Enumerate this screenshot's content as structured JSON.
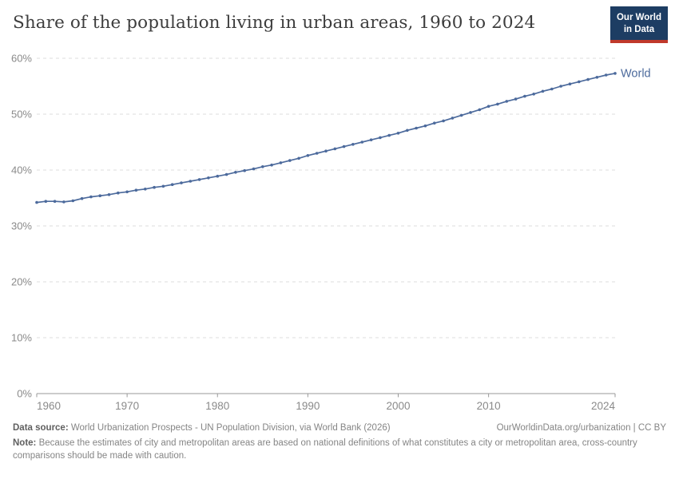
{
  "header": {
    "title": "Share of the population living in urban areas, 1960 to 2024",
    "logo": {
      "line1": "Our World",
      "line2": "in Data"
    }
  },
  "chart_data": {
    "type": "line",
    "title": "Share of the population living in urban areas, 1960 to 2024",
    "xlabel": "",
    "ylabel": "",
    "xlim": [
      1960,
      2024
    ],
    "ylim": [
      0,
      60
    ],
    "grid": "horizontal-dashed",
    "legend": "end-of-line-label",
    "x_ticks": [
      1960,
      1970,
      1980,
      1990,
      2000,
      2010,
      2024
    ],
    "y_ticks": [
      0,
      10,
      20,
      30,
      40,
      50,
      60
    ],
    "y_tick_suffix": "%",
    "series": [
      {
        "name": "World",
        "color": "#4C6A9C",
        "years": [
          1960,
          1961,
          1962,
          1963,
          1964,
          1965,
          1966,
          1967,
          1968,
          1969,
          1970,
          1971,
          1972,
          1973,
          1974,
          1975,
          1976,
          1977,
          1978,
          1979,
          1980,
          1981,
          1982,
          1983,
          1984,
          1985,
          1986,
          1987,
          1988,
          1989,
          1990,
          1991,
          1992,
          1993,
          1994,
          1995,
          1996,
          1997,
          1998,
          1999,
          2000,
          2001,
          2002,
          2003,
          2004,
          2005,
          2006,
          2007,
          2008,
          2009,
          2010,
          2011,
          2012,
          2013,
          2014,
          2015,
          2016,
          2017,
          2018,
          2019,
          2020,
          2021,
          2022,
          2023,
          2024
        ],
        "values": [
          34.2,
          34.4,
          34.4,
          34.3,
          34.5,
          34.9,
          35.2,
          35.4,
          35.6,
          35.9,
          36.1,
          36.4,
          36.6,
          36.9,
          37.1,
          37.4,
          37.7,
          38.0,
          38.3,
          38.6,
          38.9,
          39.2,
          39.6,
          39.9,
          40.2,
          40.6,
          40.9,
          41.3,
          41.7,
          42.1,
          42.6,
          43.0,
          43.4,
          43.8,
          44.2,
          44.6,
          45.0,
          45.4,
          45.8,
          46.2,
          46.6,
          47.1,
          47.5,
          47.9,
          48.4,
          48.8,
          49.3,
          49.8,
          50.3,
          50.8,
          51.4,
          51.8,
          52.3,
          52.7,
          53.2,
          53.6,
          54.1,
          54.5,
          55.0,
          55.4,
          55.8,
          56.2,
          56.6,
          57.0,
          57.3
        ]
      }
    ]
  },
  "footer": {
    "datasource_label": "Data source:",
    "datasource_text": " World Urbanization Prospects - UN Population Division, via World Bank (2026)",
    "attribution": "OurWorldinData.org/urbanization | CC BY",
    "note_label": "Note:",
    "note_text": " Because the estimates of city and metropolitan areas are based on national definitions of what constitutes a city or metropolitan area, cross-country comparisons should be made with caution."
  },
  "colors": {
    "line": "#4C6A9C",
    "grid": "#dcdcdc",
    "axis": "#999999",
    "tick_label": "#8a8a8a",
    "title_text": "#3d3d3d",
    "footer_text": "#858585",
    "logo_bg": "#1d3d63",
    "logo_stripe": "#c0392b"
  }
}
